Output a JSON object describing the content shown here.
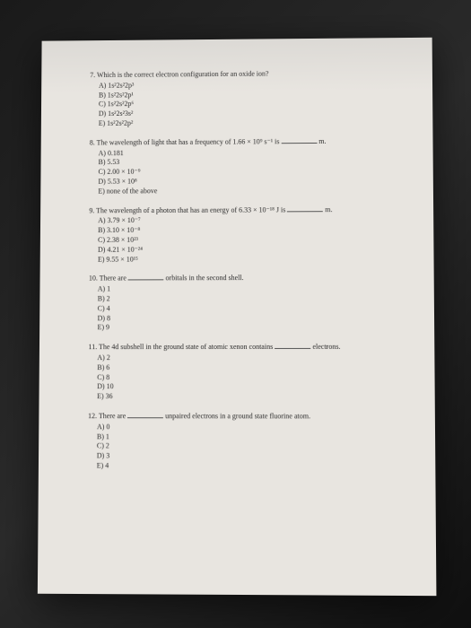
{
  "questions": [
    {
      "stem": "7.  Which is the correct electron configuration for an oxide ion?",
      "opts": [
        "A) 1s²2s²2p³",
        "B) 1s²2s²2p¹",
        "C) 1s²2s²2p⁶",
        "D) 1s²2s²3s²",
        "E) 1s²2s²2p²"
      ],
      "blank": false
    },
    {
      "stem_pre": "8.  The wavelength of light that has a frequency of 1.66 × 10⁹ s⁻¹ is ",
      "stem_post": " m.",
      "opts": [
        "A) 0.181",
        "B) 5.53",
        "C) 2.00 × 10⁻⁹",
        "D) 5.53 × 10⁸",
        "E) none of the above"
      ],
      "blank": true
    },
    {
      "stem_pre": "9.  The wavelength of a photon that has an energy of 6.33 × 10⁻¹⁸ J is ",
      "stem_post": " m.",
      "opts": [
        "A) 3.79 × 10⁻⁷",
        "B) 3.10 × 10⁻⁸",
        "C) 2.38 × 10²³",
        "D) 4.21 × 10⁻²⁴",
        "E) 9.55 × 10¹⁵"
      ],
      "blank": true
    },
    {
      "stem_pre": "10. There are ",
      "stem_post": " orbitals in the second shell.",
      "opts": [
        "A) 1",
        "B) 2",
        "C) 4",
        "D) 8",
        "E) 9"
      ],
      "blank": true
    },
    {
      "stem_pre": "11. The 4d subshell in the ground state of atomic xenon contains ",
      "stem_post": " electrons.",
      "opts": [
        "A) 2",
        "B) 6",
        "C) 8",
        "D) 10",
        "E) 36"
      ],
      "blank": true
    },
    {
      "stem_pre": "12. There are ",
      "stem_post": " unpaired electrons in a ground state fluorine atom.",
      "opts": [
        "A) 0",
        "B) 1",
        "C) 2",
        "D) 3",
        "E) 4"
      ],
      "blank": true
    }
  ]
}
